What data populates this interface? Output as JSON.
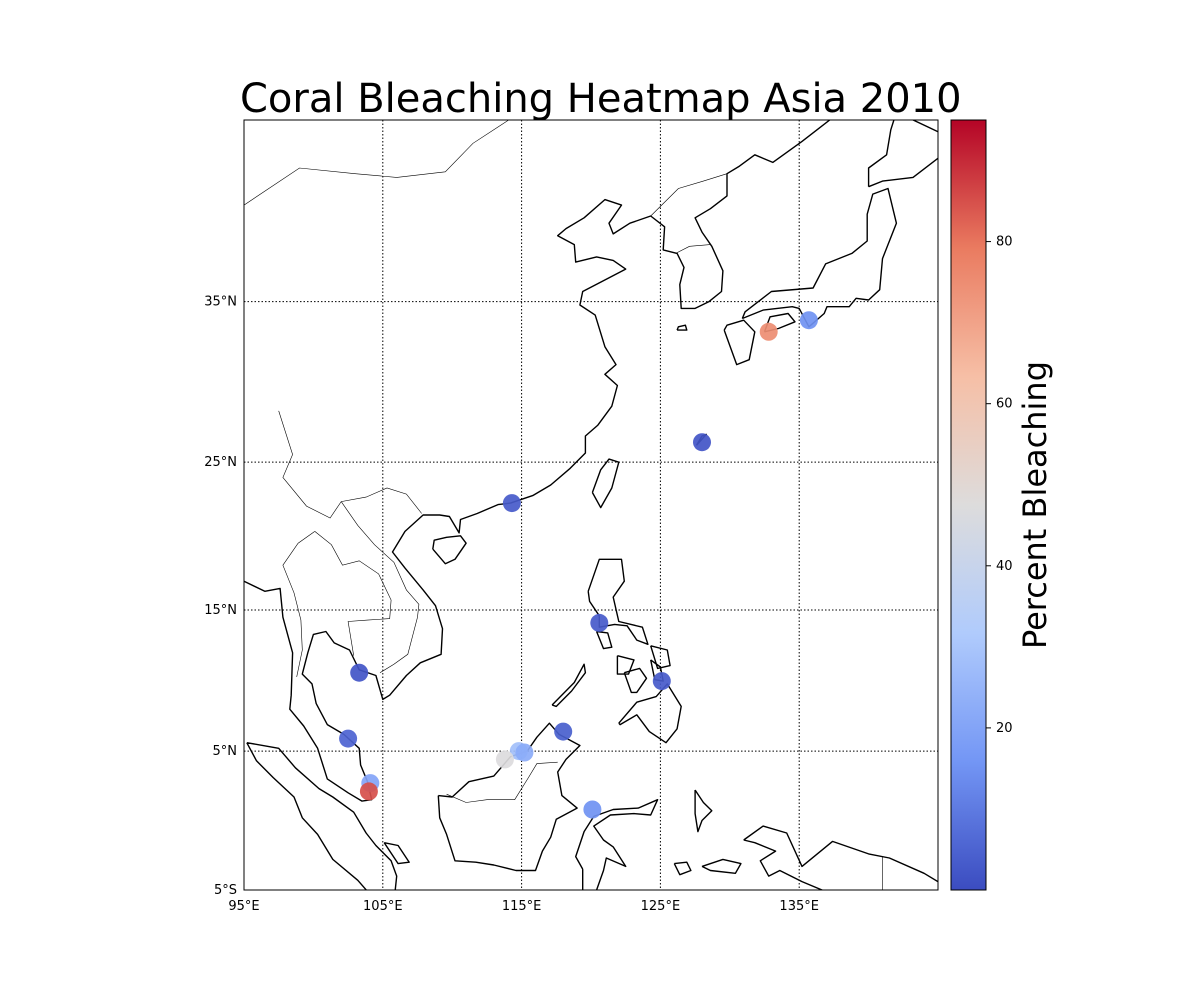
{
  "chart_data": {
    "type": "scatter",
    "title": "Coral Bleaching Heatmap Asia 2010",
    "map": {
      "lon_range": [
        95,
        145
      ],
      "lat_range": [
        -5,
        45
      ],
      "lon_ticks": [
        95,
        105,
        115,
        125,
        135
      ],
      "lon_tick_labels": [
        "95°E",
        "105°E",
        "115°E",
        "125°E",
        "135°E"
      ],
      "lat_ticks": [
        -5,
        5,
        15,
        25,
        35
      ],
      "lat_tick_labels": [
        "5°S",
        "5°N",
        "15°N",
        "25°N",
        "35°N"
      ],
      "grid": "dotted"
    },
    "colorbar": {
      "label": "Percent Bleaching",
      "range": [
        0,
        95
      ],
      "ticks": [
        20,
        40,
        60,
        80
      ],
      "tick_labels": [
        "20",
        "40",
        "60",
        "80"
      ],
      "colormap": "coolwarm",
      "colormap_stops": [
        "#3b4cc0",
        "#7396f5",
        "#b0cbfc",
        "#dddcdc",
        "#f6bfa6",
        "#ea7b60",
        "#b40426"
      ]
    },
    "points": [
      {
        "lon": 132.8,
        "lat": 33.2,
        "value": 75
      },
      {
        "lon": 135.7,
        "lat": 33.9,
        "value": 15
      },
      {
        "lon": 128.0,
        "lat": 26.3,
        "value": 2
      },
      {
        "lon": 114.3,
        "lat": 22.3,
        "value": 3
      },
      {
        "lon": 120.6,
        "lat": 14.1,
        "value": 3
      },
      {
        "lon": 125.1,
        "lat": 10.0,
        "value": 3
      },
      {
        "lon": 103.3,
        "lat": 10.6,
        "value": 2
      },
      {
        "lon": 102.5,
        "lat": 5.9,
        "value": 5
      },
      {
        "lon": 118.0,
        "lat": 6.4,
        "value": 4
      },
      {
        "lon": 114.8,
        "lat": 5.0,
        "value": 28
      },
      {
        "lon": 115.2,
        "lat": 4.9,
        "value": 22
      },
      {
        "lon": 113.8,
        "lat": 4.4,
        "value": 47
      },
      {
        "lon": 104.1,
        "lat": 2.7,
        "value": 20
      },
      {
        "lon": 104.0,
        "lat": 2.1,
        "value": 85
      },
      {
        "lon": 120.1,
        "lat": 0.8,
        "value": 15
      }
    ]
  }
}
